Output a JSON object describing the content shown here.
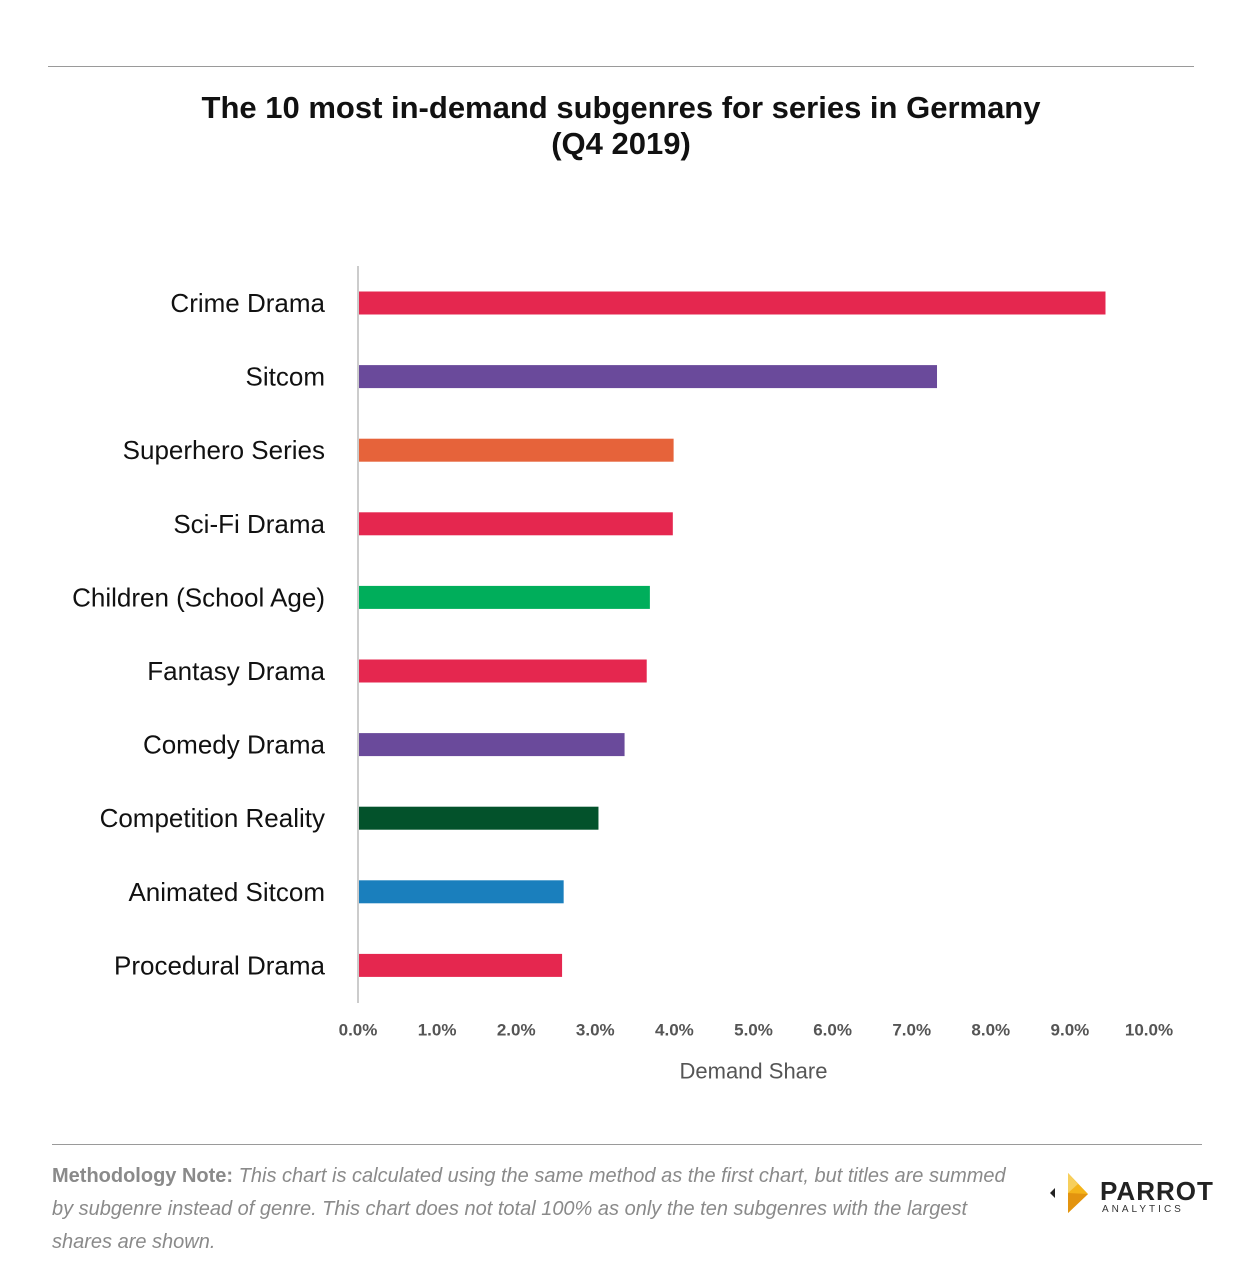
{
  "chart_data": {
    "type": "bar",
    "orientation": "horizontal",
    "title": "The 10 most in-demand subgenres for series in Germany (Q4 2019)",
    "title_lines": [
      "The 10 most in-demand subgenres for series in Germany",
      "(Q4 2019)"
    ],
    "xlabel": "Demand Share",
    "ylabel": "",
    "xlim": [
      0,
      10
    ],
    "x_ticks": [
      "0.0%",
      "1.0%",
      "2.0%",
      "3.0%",
      "4.0%",
      "5.0%",
      "6.0%",
      "7.0%",
      "8.0%",
      "9.0%",
      "10.0%"
    ],
    "grid": false,
    "categories": [
      "Crime Drama",
      "Sitcom",
      "Superhero Series",
      "Sci-Fi Drama",
      "Children (School Age)",
      "Fantasy Drama",
      "Comedy Drama",
      "Competition Reality",
      "Animated Sitcom",
      "Procedural Drama"
    ],
    "values": [
      9.45,
      7.32,
      3.99,
      3.98,
      3.69,
      3.65,
      3.37,
      3.04,
      2.6,
      2.58
    ],
    "colors": [
      "#e5274f",
      "#6a4a9b",
      "#e6633a",
      "#e5274f",
      "#00ae5b",
      "#e5274f",
      "#6a4a9b",
      "#03522b",
      "#1a7fbd",
      "#e5274f"
    ]
  },
  "note": {
    "label": "Methodology Note:",
    "text": "This chart is calculated using the same method as the first chart, but titles are summed by subgenre instead of genre. This chart does not total 100% as only the ten subgenres with the largest shares are shown."
  },
  "logo": {
    "name": "PARROT",
    "sub": "ANALYTICS",
    "icon": "parrot-logo-icon"
  },
  "colors": {
    "axis": "#cccccc",
    "tick_text": "#555555",
    "label_text": "#111111"
  }
}
